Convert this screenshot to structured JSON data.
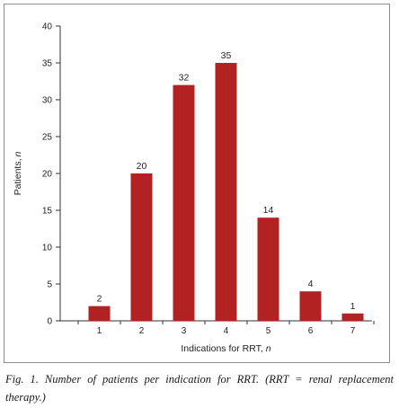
{
  "chart_data": {
    "type": "bar",
    "categories": [
      "1",
      "2",
      "3",
      "4",
      "5",
      "6",
      "7"
    ],
    "values": [
      2,
      20,
      32,
      35,
      14,
      4,
      1
    ],
    "data_labels": [
      "2",
      "20",
      "32",
      "35",
      "14",
      "4",
      "1"
    ],
    "xlabel": "Indications for RRT,",
    "xlabel_italic": "n",
    "ylabel": "Patients,",
    "ylabel_italic": "n",
    "ylim": [
      0,
      40
    ],
    "yticks": [
      0,
      5,
      10,
      15,
      20,
      25,
      30,
      35,
      40
    ],
    "grid": false,
    "bar_color": "#b22222"
  },
  "caption": "Fig. 1. Number of patients per indication for RRT. (RRT = renal replacement therapy.)"
}
